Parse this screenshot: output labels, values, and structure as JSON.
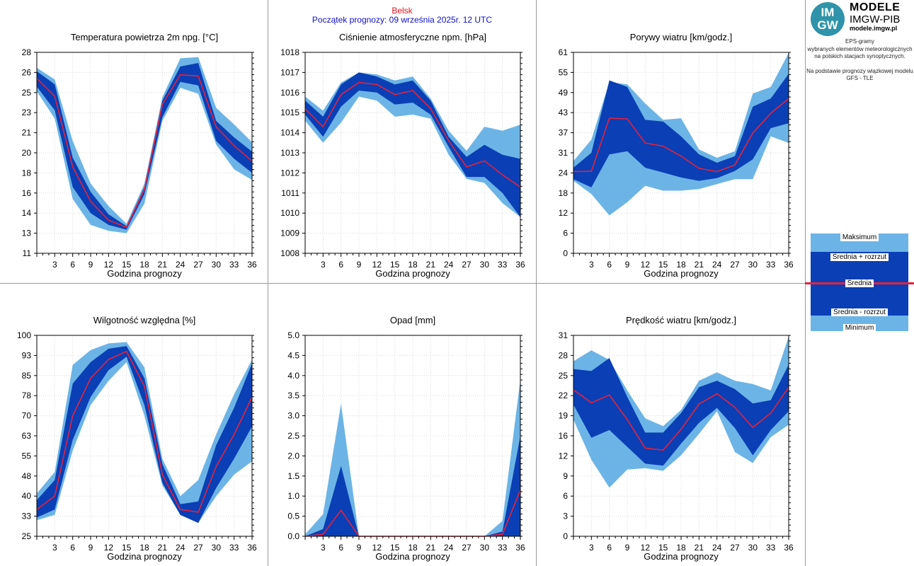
{
  "header": {
    "station": "Belsk",
    "forecast_start": "Początek prognozy: 09 września 2025r. 12 UTC"
  },
  "logo": {
    "badge": "IM GW",
    "title": "MODELE",
    "subtitle": "IMGW-PIB",
    "url": "modele.imgw.pl"
  },
  "info": {
    "line1": "EPS-gramy",
    "line2": "wybranych elementów meteorologicznych",
    "line3": "na polskich stacjach  synoptycznych.",
    "line4": "Na podstawie prognozy wiązkowej modelu",
    "line5": "GFS - TLE"
  },
  "legend": {
    "max": "Maksimum",
    "plus": "Średnia + rozrzut",
    "mean": "Średnia",
    "minus": "Średnia - rozrzut",
    "min": "Minimum"
  },
  "colors": {
    "light": "#6cb4e6",
    "dark": "#0a3fb5",
    "mean": "#e8213a",
    "station": "#e0101a",
    "start": "#1010c8"
  },
  "chart_data": [
    {
      "type": "area",
      "title": "Temperatura powietrza 2m npg. [°C]",
      "xlabel": "Godzina prognozy",
      "x": [
        0,
        3,
        6,
        9,
        12,
        15,
        18,
        21,
        24,
        27,
        30,
        33,
        36
      ],
      "xticks": [
        3,
        6,
        9,
        12,
        15,
        18,
        21,
        24,
        27,
        30,
        33,
        36
      ],
      "yticks": [
        "28",
        "26",
        "25",
        "23",
        "21",
        "20",
        "18",
        "16",
        "14",
        "13",
        "11"
      ],
      "ylim": [
        11,
        28
      ],
      "series": [
        {
          "name": "Maksimum",
          "values": [
            26.7,
            25.7,
            20.5,
            16.9,
            15.0,
            13.5,
            16.9,
            24.2,
            27.5,
            27.6,
            23.3,
            21.9,
            20.4
          ]
        },
        {
          "name": "Średnia + rozrzut",
          "values": [
            26.4,
            25.3,
            19.1,
            16.2,
            14.3,
            13.3,
            16.6,
            23.9,
            26.8,
            27.1,
            22.2,
            20.8,
            19.6
          ]
        },
        {
          "name": "Średnia",
          "values": [
            25.8,
            24.3,
            18.3,
            15.4,
            13.8,
            13.2,
            16.4,
            23.6,
            26.1,
            26.0,
            21.7,
            20.1,
            18.8
          ]
        },
        {
          "name": "Średnia - rozrzut",
          "values": [
            25.1,
            23.1,
            16.6,
            14.4,
            13.4,
            13.0,
            16.0,
            22.5,
            25.5,
            25.2,
            20.5,
            19.0,
            17.8
          ]
        },
        {
          "name": "Minimum",
          "values": [
            24.7,
            22.4,
            15.6,
            13.4,
            12.9,
            12.7,
            15.2,
            22.2,
            25.0,
            24.5,
            20.2,
            18.1,
            17.2
          ]
        }
      ]
    },
    {
      "type": "area",
      "title": "Ciśnienie atmosferyczne npm. [hPa]",
      "xlabel": "Godzina prognozy",
      "x": [
        0,
        3,
        6,
        9,
        12,
        15,
        18,
        21,
        24,
        27,
        30,
        33,
        36
      ],
      "xticks": [
        3,
        6,
        9,
        12,
        15,
        18,
        21,
        24,
        27,
        30,
        33,
        36
      ],
      "yticks": [
        "1018",
        "1017",
        "1016",
        "1015",
        "1014",
        "1013",
        "1012",
        "1011",
        "1010",
        "1009",
        "1008"
      ],
      "ylim": [
        1008,
        1018
      ],
      "series": [
        {
          "name": "Maksimum",
          "values": [
            1015.8,
            1015.1,
            1016.5,
            1017.0,
            1016.9,
            1016.6,
            1016.8,
            1015.7,
            1014.1,
            1013.1,
            1014.3,
            1014.1,
            1014.4
          ]
        },
        {
          "name": "Średnia + rozrzut",
          "values": [
            1015.6,
            1014.8,
            1016.4,
            1017.0,
            1016.8,
            1016.4,
            1016.6,
            1015.6,
            1013.8,
            1012.8,
            1013.4,
            1012.9,
            1012.7
          ]
        },
        {
          "name": "Średnia",
          "values": [
            1015.2,
            1014.3,
            1015.9,
            1016.5,
            1016.4,
            1015.9,
            1016.1,
            1015.2,
            1013.6,
            1012.3,
            1012.6,
            1011.9,
            1011.3
          ]
        },
        {
          "name": "Średnia - rozrzut",
          "values": [
            1014.9,
            1013.8,
            1015.3,
            1016.1,
            1016.0,
            1015.4,
            1015.5,
            1014.9,
            1013.3,
            1011.8,
            1011.8,
            1011.0,
            1009.8
          ]
        },
        {
          "name": "Minimum",
          "values": [
            1014.6,
            1013.5,
            1014.5,
            1015.8,
            1015.6,
            1014.8,
            1014.9,
            1014.7,
            1012.9,
            1011.7,
            1011.5,
            1010.5,
            1009.8
          ]
        }
      ]
    },
    {
      "type": "area",
      "title": "Porywy wiatru [km/godz.]",
      "xlabel": "Godzina prognozy",
      "x": [
        0,
        3,
        6,
        9,
        12,
        15,
        18,
        21,
        24,
        27,
        30,
        33,
        36
      ],
      "xticks": [
        3,
        6,
        9,
        12,
        15,
        18,
        21,
        24,
        27,
        30,
        33,
        36
      ],
      "yticks": [
        "61",
        "55",
        "49",
        "43",
        "37",
        "31",
        "24",
        "18",
        "12",
        "6",
        "0"
      ],
      "ylim": [
        0,
        61
      ],
      "series": [
        {
          "name": "Maksimum",
          "values": [
            28.0,
            34.5,
            52.0,
            51.3,
            45.5,
            40.5,
            41.0,
            31.5,
            29.0,
            31.0,
            48.5,
            50.5,
            60.8
          ]
        },
        {
          "name": "Średnia + rozrzut",
          "values": [
            26.0,
            30.5,
            52.5,
            50.5,
            40.5,
            40.0,
            35.5,
            30.0,
            27.5,
            29.5,
            44.5,
            47.0,
            54.5
          ]
        },
        {
          "name": "Średnia",
          "values": [
            24.8,
            24.9,
            41.0,
            40.8,
            33.5,
            32.5,
            29.5,
            25.8,
            24.8,
            26.8,
            36.5,
            42.5,
            47.0
          ]
        },
        {
          "name": "Średnia - rozrzut",
          "values": [
            22.5,
            20.0,
            30.0,
            31.0,
            26.0,
            24.5,
            23.0,
            22.0,
            22.8,
            25.0,
            28.5,
            38.0,
            39.5
          ]
        },
        {
          "name": "Minimum",
          "values": [
            22.0,
            18.0,
            11.5,
            15.5,
            20.5,
            19.0,
            19.0,
            19.5,
            21.0,
            22.5,
            22.5,
            35.5,
            33.5
          ]
        }
      ]
    },
    {
      "type": "area",
      "title": "Wilgotność względna [%]",
      "xlabel": "Godzina prognozy",
      "x": [
        0,
        3,
        6,
        9,
        12,
        15,
        18,
        21,
        24,
        27,
        30,
        33,
        36
      ],
      "xticks": [
        3,
        6,
        9,
        12,
        15,
        18,
        21,
        24,
        27,
        30,
        33,
        36
      ],
      "yticks": [
        "100",
        "93",
        "85",
        "78",
        "70",
        "63",
        "55",
        "48",
        "40",
        "33",
        "25"
      ],
      "ylim": [
        25,
        100
      ],
      "series": [
        {
          "name": "Maksimum",
          "values": [
            41.0,
            49.0,
            89.0,
            94.5,
            97.0,
            97.5,
            88.0,
            54.0,
            40.0,
            46.0,
            63.0,
            78.0,
            91.0
          ]
        },
        {
          "name": "Średnia + rozrzut",
          "values": [
            38.5,
            46.0,
            82.0,
            90.0,
            95.0,
            96.0,
            84.0,
            52.0,
            37.0,
            38.0,
            59.0,
            73.0,
            89.5
          ]
        },
        {
          "name": "Średnia",
          "values": [
            35.0,
            40.0,
            70.0,
            84.0,
            91.0,
            94.0,
            81.0,
            48.0,
            35.0,
            34.0,
            51.0,
            63.0,
            77.0
          ]
        },
        {
          "name": "Średnia - rozrzut",
          "values": [
            32.0,
            35.0,
            61.0,
            77.0,
            87.0,
            92.0,
            74.0,
            45.0,
            33.0,
            30.0,
            43.0,
            54.0,
            66.0
          ]
        },
        {
          "name": "Minimum",
          "values": [
            31.0,
            33.0,
            57.0,
            74.0,
            83.0,
            90.0,
            70.0,
            44.0,
            33.0,
            30.0,
            40.0,
            48.0,
            53.0
          ]
        }
      ]
    },
    {
      "type": "area",
      "title": "Opad [mm]",
      "xlabel": "Godzina prognozy",
      "x": [
        0,
        3,
        6,
        9,
        12,
        15,
        18,
        21,
        24,
        27,
        30,
        33,
        36
      ],
      "xticks": [
        3,
        6,
        9,
        12,
        15,
        18,
        21,
        24,
        27,
        30,
        33,
        36
      ],
      "yticks": [
        "5.0",
        "4.5",
        "4.0",
        "3.5",
        "3.0",
        "2.5",
        "2.0",
        "1.5",
        "1.0",
        "0.5",
        "0.0"
      ],
      "ylim": [
        0,
        5
      ],
      "series": [
        {
          "name": "Maksimum",
          "values": [
            0.05,
            0.55,
            3.3,
            0.0,
            0.0,
            0.0,
            0.0,
            0.0,
            0.0,
            0.0,
            0.0,
            0.38,
            3.9
          ]
        },
        {
          "name": "Średnia + rozrzut",
          "values": [
            0.0,
            0.18,
            1.75,
            0.0,
            0.0,
            0.0,
            0.0,
            0.0,
            0.0,
            0.0,
            0.0,
            0.12,
            2.5
          ]
        },
        {
          "name": "Średnia",
          "values": [
            0.0,
            0.05,
            0.65,
            0.0,
            0.0,
            0.0,
            0.0,
            0.0,
            0.0,
            0.0,
            0.0,
            0.05,
            1.15
          ]
        },
        {
          "name": "Średnia - rozrzut",
          "values": [
            0.0,
            0.0,
            0.0,
            0.0,
            0.0,
            0.0,
            0.0,
            0.0,
            0.0,
            0.0,
            0.0,
            0.0,
            0.0
          ]
        },
        {
          "name": "Minimum",
          "values": [
            0.0,
            0.0,
            0.0,
            0.0,
            0.0,
            0.0,
            0.0,
            0.0,
            0.0,
            0.0,
            0.0,
            0.0,
            0.0
          ]
        }
      ]
    },
    {
      "type": "area",
      "title": "Prędkość wiatru [km/godz.]",
      "xlabel": "Godzina prognozy",
      "x": [
        0,
        3,
        6,
        9,
        12,
        15,
        18,
        21,
        24,
        27,
        30,
        33,
        36
      ],
      "xticks": [
        3,
        6,
        9,
        12,
        15,
        18,
        21,
        24,
        27,
        30,
        33,
        36
      ],
      "yticks": [
        "31",
        "28",
        "25",
        "22",
        "19",
        "16",
        "12",
        "9",
        "6",
        "3",
        "0"
      ],
      "ylim": [
        0,
        31
      ],
      "series": [
        {
          "name": "Maksimum",
          "values": [
            27.0,
            28.7,
            27.2,
            22.5,
            18.2,
            17.0,
            19.5,
            24.0,
            25.3,
            24.0,
            23.5,
            22.5,
            30.8
          ]
        },
        {
          "name": "Średnia + rozrzut",
          "values": [
            25.8,
            25.5,
            27.5,
            21.5,
            16.0,
            16.0,
            19.0,
            23.0,
            24.0,
            22.7,
            20.5,
            21.0,
            26.5
          ]
        },
        {
          "name": "Średnia",
          "values": [
            22.6,
            20.6,
            21.8,
            18.0,
            13.6,
            13.3,
            16.5,
            20.4,
            22.0,
            19.9,
            16.8,
            19.0,
            23.0
          ]
        },
        {
          "name": "Średnia - rozrzut",
          "values": [
            20.3,
            15.2,
            16.4,
            13.8,
            11.2,
            10.9,
            14.3,
            17.5,
            19.8,
            16.7,
            12.5,
            16.4,
            19.3
          ]
        },
        {
          "name": "Minimum",
          "values": [
            18.0,
            11.8,
            7.5,
            10.3,
            10.5,
            10.1,
            12.5,
            15.8,
            19.3,
            13.0,
            11.3,
            15.3,
            17.2
          ]
        }
      ]
    }
  ]
}
